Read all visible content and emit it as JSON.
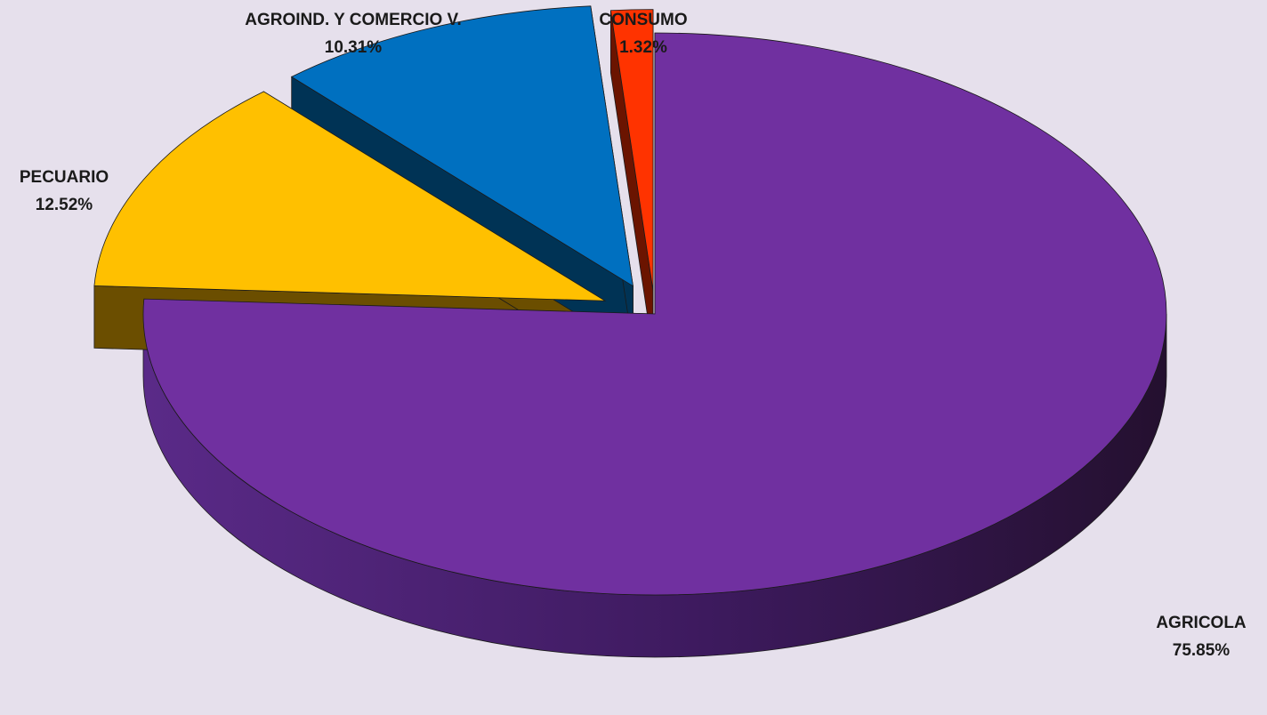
{
  "chart_data": {
    "type": "pie",
    "title": "",
    "style": "3d-exploded",
    "slices": [
      {
        "name": "AGRICOLA",
        "value": 75.85,
        "value_label": "75.85%",
        "color": "#7030a0",
        "side_color": "#4a1f6e"
      },
      {
        "name": "PECUARIO",
        "value": 12.52,
        "value_label": "12.52%",
        "color": "#ffc000",
        "side_color": "#6b4e00"
      },
      {
        "name": "AGROIND. Y COMERCIO V.",
        "value": 10.31,
        "value_label": "10.31%",
        "color": "#0070c0",
        "side_color": "#003355"
      },
      {
        "name": "CONSUMO",
        "value": 1.32,
        "value_label": "1.32%",
        "color": "#ff3300",
        "side_color": "#6b1400"
      }
    ]
  },
  "colors": {
    "background": "#e6e0ec",
    "label_text": "#1a1a1a"
  }
}
